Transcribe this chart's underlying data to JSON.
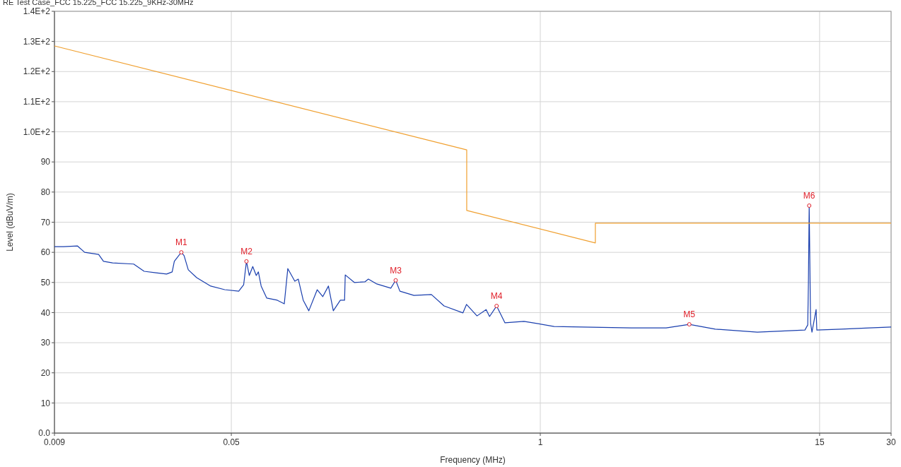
{
  "chart_data": {
    "type": "line",
    "title": "RE Test Case_FCC 15.225_FCC 15.225_9KHz-30MHz",
    "xlabel": "Frequency (MHz)",
    "ylabel": "Level (dBuV/m)",
    "log": "x",
    "grid": true,
    "xlim": [
      0.009,
      30
    ],
    "xticks": [
      0.009,
      0.05,
      1,
      15,
      30
    ],
    "ylim": [
      0,
      140
    ],
    "yticks": [
      {
        "value": 0,
        "label": "0.0"
      },
      10,
      20,
      30,
      40,
      50,
      60,
      70,
      80,
      90,
      {
        "value": 100,
        "label": "1.0E+2"
      },
      {
        "value": 110,
        "label": "1.1E+2"
      },
      {
        "value": 120,
        "label": "1.2E+2"
      },
      {
        "value": 130,
        "label": "1.3E+2"
      },
      {
        "value": 140,
        "label": "1.4E+2"
      }
    ],
    "series": [
      {
        "color": "#1a3fae",
        "x": [
          0.009,
          0.00983,
          0.01126,
          0.01206,
          0.01381,
          0.01448,
          0.01582,
          0.0194,
          0.02147,
          0.0241,
          0.02669,
          0.02818,
          0.02877,
          0.03079,
          0.03163,
          0.03294,
          0.03574,
          0.03825,
          0.04094,
          0.0469,
          0.05373,
          0.05634,
          0.0579,
          0.0595,
          0.06155,
          0.06368,
          0.06499,
          0.06678,
          0.0705,
          0.07808,
          0.08356,
          0.08646,
          0.09253,
          0.09572,
          0.1004,
          0.106,
          0.115,
          0.1214,
          0.1282,
          0.1344,
          0.1439,
          0.1499,
          0.1509,
          0.1648,
          0.1825,
          0.1888,
          0.2049,
          0.2347,
          0.2461,
          0.2563,
          0.2937,
          0.3479,
          0.3933,
          0.4724,
          0.4889,
          0.5414,
          0.5913,
          0.6115,
          0.6546,
          0.71,
          0.8535,
          1.143,
          1.5,
          2.413,
          3.389,
          4.241,
          5.453,
          8.197,
          13.01,
          13.37,
          13.46,
          13.56,
          13.74,
          13.93,
          14.5,
          14.6,
          18.52,
          24.31,
          30
        ],
        "values": [
          61.9,
          61.9,
          62.1,
          60.0,
          59.3,
          57.0,
          56.5,
          56.1,
          53.7,
          53.2,
          52.8,
          53.5,
          57.0,
          60.0,
          58.9,
          54.2,
          51.6,
          50.2,
          48.8,
          47.6,
          47.1,
          49.2,
          57.0,
          52.3,
          55.3,
          52.3,
          53.5,
          48.8,
          44.8,
          44.1,
          42.9,
          54.6,
          50.4,
          51.1,
          44.1,
          40.6,
          47.6,
          45.3,
          48.8,
          40.6,
          44.1,
          44.1,
          52.5,
          50.0,
          50.2,
          51.1,
          49.5,
          48.1,
          50.7,
          47.1,
          45.7,
          46.0,
          42.2,
          39.9,
          42.7,
          38.9,
          41.0,
          38.7,
          42.2,
          36.6,
          37.1,
          35.4,
          35.2,
          34.9,
          34.9,
          36.1,
          34.5,
          33.5,
          34.2,
          35.9,
          50.0,
          75.5,
          36.6,
          33.5,
          41.0,
          34.2,
          34.5,
          34.9,
          35.2
        ]
      },
      {
        "color": "#f0a030",
        "x": [
          0.009,
          0.49,
          0.49,
          1.705,
          1.705,
          30
        ],
        "values": [
          128.5,
          94.0,
          73.9,
          63.1,
          69.7,
          69.7
        ]
      }
    ],
    "annotations": [
      {
        "text": "M1",
        "x": 0.03079,
        "y": 60.0
      },
      {
        "text": "M2",
        "x": 0.0579,
        "y": 57.0
      },
      {
        "text": "M3",
        "x": 0.2461,
        "y": 50.7
      },
      {
        "text": "M4",
        "x": 0.6546,
        "y": 42.2
      },
      {
        "text": "M5",
        "x": 4.241,
        "y": 36.1
      },
      {
        "text": "M6",
        "x": 13.56,
        "y": 75.5
      }
    ]
  }
}
